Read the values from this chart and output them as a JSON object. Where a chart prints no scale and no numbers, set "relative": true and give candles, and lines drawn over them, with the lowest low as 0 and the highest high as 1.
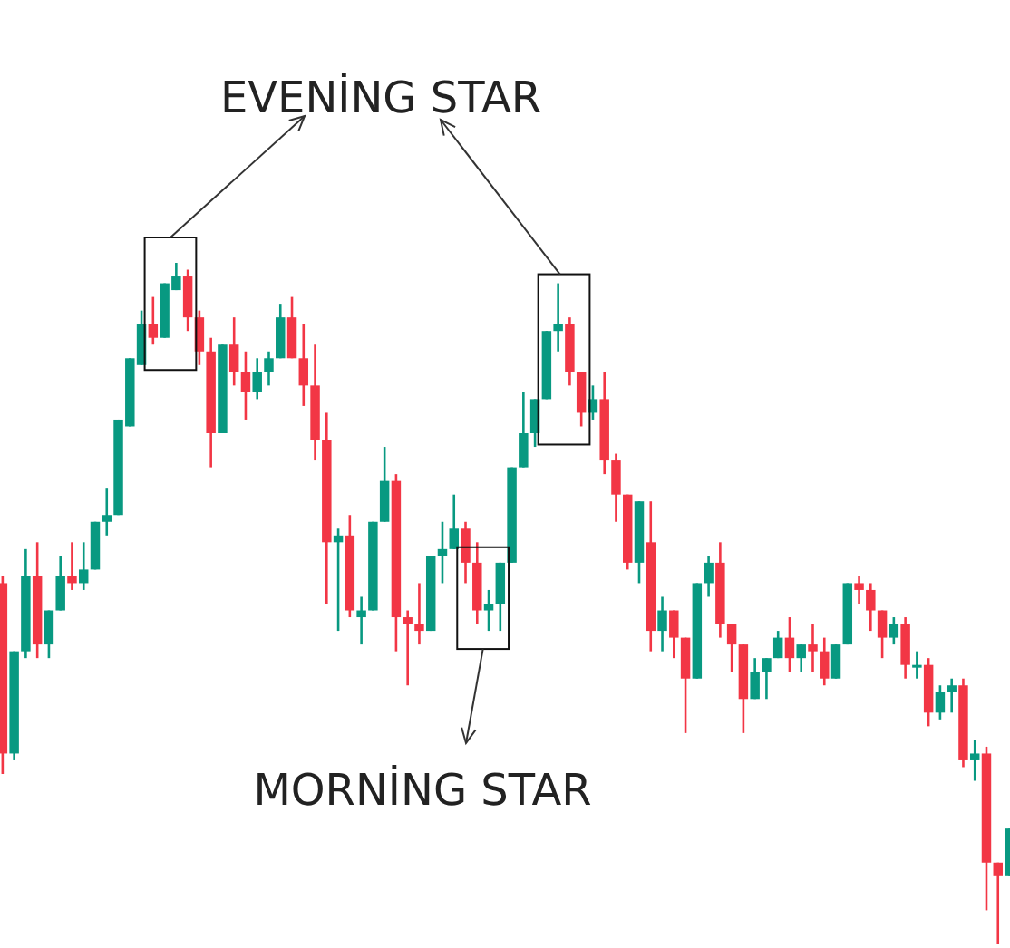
{
  "chart_data": {
    "type": "candlestick",
    "relative": true,
    "annotations": [
      "EVENİNG STAR",
      "MORNİNG STAR"
    ],
    "categories": [
      null,
      null,
      null,
      null,
      null,
      null,
      null,
      null,
      null,
      null,
      null,
      null,
      null,
      null,
      null,
      null,
      null,
      null,
      null,
      null,
      null,
      null,
      null,
      null,
      null,
      null,
      null,
      null,
      null,
      null,
      null,
      null,
      null,
      null,
      null,
      null,
      null,
      null,
      null,
      null,
      null,
      null,
      null,
      null,
      null,
      null,
      null,
      null,
      null,
      null,
      null,
      null,
      null,
      null,
      null,
      null,
      null,
      null,
      null,
      null,
      null,
      null,
      null,
      null,
      null,
      null,
      null,
      null,
      null,
      null,
      null,
      null,
      null,
      null,
      null,
      null,
      null,
      null,
      null,
      null,
      null,
      null,
      null,
      null,
      null,
      null,
      null,
      null
    ],
    "ohlc": [
      [
        0.53,
        0.54,
        0.25,
        0.28
      ],
      [
        0.28,
        0.43,
        0.27,
        0.43
      ],
      [
        0.43,
        0.58,
        0.42,
        0.54
      ],
      [
        0.54,
        0.59,
        0.42,
        0.44
      ],
      [
        0.44,
        0.49,
        0.42,
        0.49
      ],
      [
        0.49,
        0.57,
        0.49,
        0.54
      ],
      [
        0.54,
        0.59,
        0.52,
        0.53
      ],
      [
        0.53,
        0.59,
        0.52,
        0.55
      ],
      [
        0.55,
        0.62,
        0.55,
        0.62
      ],
      [
        0.62,
        0.67,
        0.6,
        0.63
      ],
      [
        0.63,
        0.77,
        0.63,
        0.77
      ],
      [
        0.76,
        0.86,
        0.76,
        0.86
      ],
      [
        0.85,
        0.93,
        0.85,
        0.91
      ],
      [
        0.91,
        0.95,
        0.88,
        0.89
      ],
      [
        0.89,
        0.97,
        0.89,
        0.97
      ],
      [
        0.96,
        1,
        0.96,
        0.98
      ],
      [
        0.98,
        0.99,
        0.9,
        0.92
      ],
      [
        0.92,
        0.93,
        0.85,
        0.87
      ],
      [
        0.87,
        0.89,
        0.7,
        0.75
      ],
      [
        0.75,
        0.88,
        0.75,
        0.88
      ],
      [
        0.88,
        0.92,
        0.82,
        0.84
      ],
      [
        0.84,
        0.87,
        0.77,
        0.81
      ],
      [
        0.81,
        0.86,
        0.8,
        0.84
      ],
      [
        0.84,
        0.87,
        0.82,
        0.86
      ],
      [
        0.86,
        0.94,
        0.86,
        0.92
      ],
      [
        0.92,
        0.95,
        0.86,
        0.86
      ],
      [
        0.86,
        0.91,
        0.79,
        0.82
      ],
      [
        0.82,
        0.88,
        0.71,
        0.74
      ],
      [
        0.74,
        0.78,
        0.5,
        0.59
      ],
      [
        0.59,
        0.61,
        0.46,
        0.6
      ],
      [
        0.6,
        0.63,
        0.48,
        0.49
      ],
      [
        0.48,
        0.51,
        0.44,
        0.49
      ],
      [
        0.49,
        0.62,
        0.49,
        0.62
      ],
      [
        0.62,
        0.73,
        0.62,
        0.68
      ],
      [
        0.68,
        0.69,
        0.43,
        0.48
      ],
      [
        0.48,
        0.49,
        0.38,
        0.47
      ],
      [
        0.47,
        0.53,
        0.44,
        0.46
      ],
      [
        0.46,
        0.57,
        0.46,
        0.57
      ],
      [
        0.57,
        0.62,
        0.53,
        0.58
      ],
      [
        0.58,
        0.66,
        0.58,
        0.61
      ],
      [
        0.61,
        0.62,
        0.53,
        0.56
      ],
      [
        0.56,
        0.59,
        0.47,
        0.49
      ],
      [
        0.49,
        0.52,
        0.46,
        0.5
      ],
      [
        0.5,
        0.56,
        0.46,
        0.56
      ],
      [
        0.56,
        0.7,
        0.56,
        0.7
      ],
      [
        0.7,
        0.81,
        0.7,
        0.75
      ],
      [
        0.75,
        0.8,
        0.73,
        0.8
      ],
      [
        0.8,
        0.9,
        0.8,
        0.9
      ],
      [
        0.9,
        0.97,
        0.87,
        0.91
      ],
      [
        0.91,
        0.92,
        0.82,
        0.84
      ],
      [
        0.84,
        0.84,
        0.76,
        0.78
      ],
      [
        0.78,
        0.82,
        0.77,
        0.8
      ],
      [
        0.8,
        0.84,
        0.69,
        0.71
      ],
      [
        0.71,
        0.72,
        0.62,
        0.66
      ],
      [
        0.66,
        0.66,
        0.55,
        0.56
      ],
      [
        0.56,
        0.65,
        0.53,
        0.65
      ],
      [
        0.59,
        0.65,
        0.43,
        0.46
      ],
      [
        0.46,
        0.51,
        0.43,
        0.49
      ],
      [
        0.49,
        0.49,
        0.42,
        0.45
      ],
      [
        0.45,
        0.45,
        0.31,
        0.39
      ],
      [
        0.39,
        0.53,
        0.39,
        0.53
      ],
      [
        0.53,
        0.57,
        0.51,
        0.56
      ],
      [
        0.56,
        0.59,
        0.45,
        0.47
      ],
      [
        0.47,
        0.47,
        0.4,
        0.44
      ],
      [
        0.44,
        0.44,
        0.31,
        0.36
      ],
      [
        0.36,
        0.42,
        0.36,
        0.4
      ],
      [
        0.4,
        0.42,
        0.36,
        0.42
      ],
      [
        0.42,
        0.46,
        0.42,
        0.45
      ],
      [
        0.45,
        0.48,
        0.4,
        0.42
      ],
      [
        0.42,
        0.44,
        0.4,
        0.44
      ],
      [
        0.44,
        0.47,
        0.4,
        0.43
      ],
      [
        0.43,
        0.45,
        0.38,
        0.39
      ],
      [
        0.39,
        0.44,
        0.39,
        0.44
      ],
      [
        0.44,
        0.53,
        0.44,
        0.53
      ],
      [
        0.53,
        0.54,
        0.5,
        0.52
      ],
      [
        0.52,
        0.53,
        0.46,
        0.49
      ],
      [
        0.49,
        0.49,
        0.42,
        0.45
      ],
      [
        0.45,
        0.48,
        0.44,
        0.47
      ],
      [
        0.47,
        0.48,
        0.39,
        0.41
      ],
      [
        0.41,
        0.43,
        0.39,
        0.41
      ],
      [
        0.41,
        0.42,
        0.32,
        0.34
      ],
      [
        0.34,
        0.38,
        0.33,
        0.37
      ],
      [
        0.37,
        0.39,
        0.34,
        0.38
      ],
      [
        0.38,
        0.39,
        0.26,
        0.27
      ],
      [
        0.27,
        0.3,
        0.24,
        0.28
      ],
      [
        0.28,
        0.29,
        0.05,
        0.12
      ],
      [
        0.12,
        0.12,
        0,
        0.1
      ],
      [
        0.1,
        0.17,
        0.1,
        0.17
      ]
    ],
    "colors": [
      "#f23645",
      "#089981",
      "#089981",
      "#f23645",
      "#089981",
      "#089981",
      "#f23645",
      "#089981",
      "#089981",
      "#089981",
      "#089981",
      "#089981",
      "#089981",
      "#f23645",
      "#089981",
      "#089981",
      "#f23645",
      "#f23645",
      "#f23645",
      "#089981",
      "#f23645",
      "#f23645",
      "#089981",
      "#089981",
      "#089981",
      "#f23645",
      "#f23645",
      "#f23645",
      "#f23645",
      "#089981",
      "#f23645",
      "#089981",
      "#089981",
      "#089981",
      "#f23645",
      "#f23645",
      "#f23645",
      "#089981",
      "#089981",
      "#089981",
      "#f23645",
      "#f23645",
      "#089981",
      "#089981",
      "#089981",
      "#089981",
      "#089981",
      "#089981",
      "#089981",
      "#f23645",
      "#f23645",
      "#089981",
      "#f23645",
      "#f23645",
      "#f23645",
      "#089981",
      "#f23645",
      "#089981",
      "#f23645",
      "#f23645",
      "#089981",
      "#089981",
      "#f23645",
      "#f23645",
      "#f23645",
      "#089981",
      "#089981",
      "#089981",
      "#f23645",
      "#089981",
      "#f23645",
      "#f23645",
      "#089981",
      "#089981",
      "#f23645",
      "#f23645",
      "#f23645",
      "#089981",
      "#f23645",
      "#089981",
      "#f23645",
      "#089981",
      "#089981",
      "#f23645",
      "#089981",
      "#f23645",
      "#f23645",
      "#089981"
    ]
  }
}
